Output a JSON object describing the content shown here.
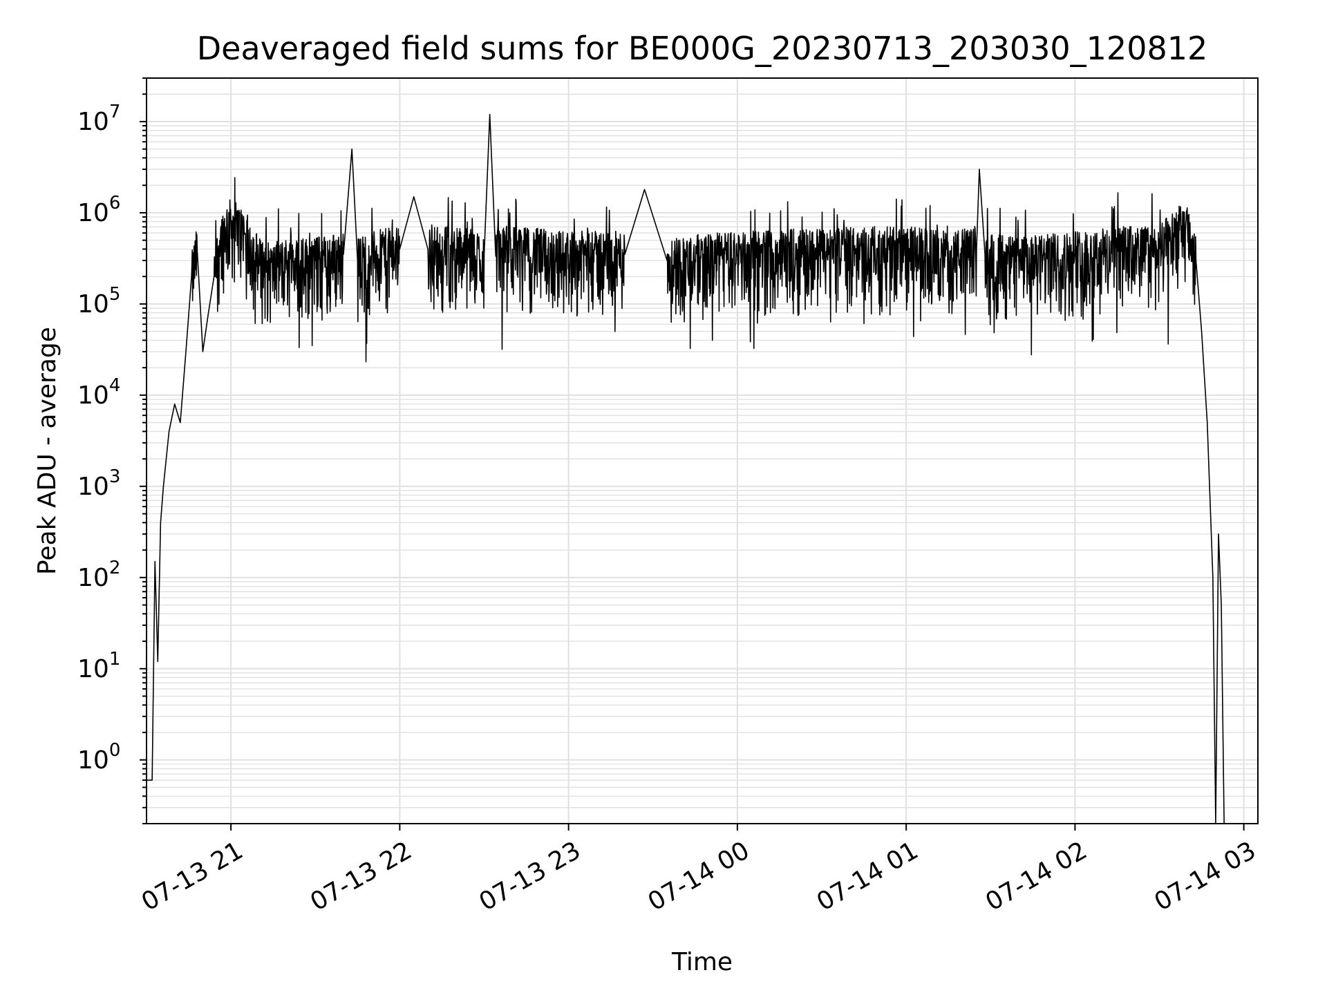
{
  "chart_data": {
    "type": "line",
    "title": "Deaveraged field sums for BE000G_20230713_203030_120812",
    "xlabel": "Time",
    "ylabel": "Peak ADU - average",
    "y_scale": "log",
    "ylim": [
      0.2,
      30000000
    ],
    "xlim": [
      "07-13 20:30",
      "07-14 03:05"
    ],
    "grid": true,
    "line_color": "#000000",
    "grid_color": "#e0e0e0",
    "x_ticks": [
      "07-13 21",
      "07-13 22",
      "07-13 23",
      "07-14 00",
      "07-14 01",
      "07-14 02",
      "07-14 03"
    ],
    "y_ticks": [
      {
        "base": "10",
        "exp": "0",
        "value": 1
      },
      {
        "base": "10",
        "exp": "1",
        "value": 10
      },
      {
        "base": "10",
        "exp": "2",
        "value": 100
      },
      {
        "base": "10",
        "exp": "3",
        "value": 1000
      },
      {
        "base": "10",
        "exp": "4",
        "value": 10000
      },
      {
        "base": "10",
        "exp": "5",
        "value": 100000
      },
      {
        "base": "10",
        "exp": "6",
        "value": 1000000
      },
      {
        "base": "10",
        "exp": "7",
        "value": 10000000
      }
    ],
    "series": [
      {
        "x": [
          "07-13 20:30",
          "07-13 20:32",
          "07-13 20:33",
          "07-13 20:34",
          "07-13 20:35",
          "07-13 20:36",
          "07-13 20:38",
          "07-13 20:40",
          "07-13 20:42",
          "07-13 20:44",
          "07-13 20:46",
          "07-13 20:48",
          "07-13 20:50",
          "07-13 20:52",
          "07-13 20:54",
          "07-13 20:56",
          "07-13 20:58",
          "07-13 21:00",
          "07-13 21:05",
          "07-13 21:10",
          "07-13 21:15",
          "07-13 21:20",
          "07-13 21:30",
          "07-13 21:40",
          "07-13 21:43",
          "07-13 21:45",
          "07-13 21:50",
          "07-13 22:00",
          "07-13 22:05",
          "07-13 22:10",
          "07-13 22:20",
          "07-13 22:30",
          "07-13 22:32",
          "07-13 22:34",
          "07-13 22:40",
          "07-13 23:00",
          "07-13 23:20",
          "07-13 23:27",
          "07-13 23:35",
          "07-14 00:00",
          "07-14 00:30",
          "07-14 01:00",
          "07-14 01:15",
          "07-14 01:25",
          "07-14 01:26",
          "07-14 01:28",
          "07-14 01:40",
          "07-14 02:00",
          "07-14 02:15",
          "07-14 02:30",
          "07-14 02:35",
          "07-14 02:38",
          "07-14 02:40",
          "07-14 02:43",
          "07-14 02:45",
          "07-14 02:47",
          "07-14 02:49",
          "07-14 02:50",
          "07-14 02:51",
          "07-14 02:52",
          "07-14 02:53"
        ],
        "y": [
          0.6,
          0.6,
          150,
          12,
          400,
          1000,
          4000,
          8000,
          5000,
          30000,
          200000,
          400000,
          30000,
          80000,
          200000,
          500000,
          700000,
          800000,
          600000,
          300000,
          250000,
          300000,
          300000,
          350000,
          5000000,
          300000,
          350000,
          400000,
          1500000,
          400000,
          400000,
          350000,
          12000000,
          400000,
          400000,
          350000,
          350000,
          1800000,
          300000,
          350000,
          380000,
          400000,
          350000,
          400000,
          3000000,
          350000,
          300000,
          350000,
          400000,
          400000,
          600000,
          700000,
          650000,
          300000,
          50000,
          5000,
          100,
          0.2,
          300,
          50,
          0.2
        ]
      }
    ]
  }
}
